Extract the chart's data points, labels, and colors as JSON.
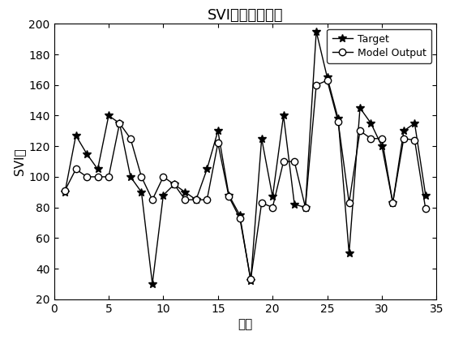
{
  "title": "SVI输出曲线对比",
  "xlabel": "样本",
  "ylabel": "SVI値",
  "xlim": [
    0,
    35
  ],
  "ylim": [
    20,
    200
  ],
  "xticks": [
    0,
    5,
    10,
    15,
    20,
    25,
    30,
    35
  ],
  "yticks": [
    20,
    40,
    60,
    80,
    100,
    120,
    140,
    160,
    180,
    200
  ],
  "target_x": [
    1,
    2,
    3,
    4,
    5,
    6,
    7,
    8,
    9,
    10,
    11,
    12,
    13,
    14,
    15,
    16,
    17,
    18,
    19,
    20,
    21,
    22,
    23,
    24,
    25,
    26,
    27,
    28,
    29,
    30,
    31,
    32,
    33,
    34
  ],
  "target_y": [
    90,
    127,
    115,
    105,
    140,
    135,
    100,
    90,
    30,
    88,
    95,
    90,
    85,
    105,
    130,
    88,
    75,
    32,
    125,
    87,
    140,
    82,
    80,
    195,
    165,
    138,
    50,
    145,
    135,
    120,
    83,
    130,
    135,
    88
  ],
  "model_x": [
    1,
    2,
    3,
    4,
    5,
    6,
    7,
    8,
    9,
    10,
    11,
    12,
    13,
    14,
    15,
    16,
    17,
    18,
    19,
    20,
    21,
    22,
    23,
    24,
    25,
    26,
    27,
    28,
    29,
    30,
    31,
    32,
    33,
    34
  ],
  "model_y": [
    91,
    105,
    100,
    100,
    100,
    135,
    125,
    100,
    85,
    100,
    95,
    85,
    85,
    85,
    122,
    87,
    73,
    33,
    83,
    80,
    110,
    110,
    80,
    160,
    163,
    136,
    83,
    130,
    125,
    125,
    83,
    125,
    124,
    79
  ],
  "line_color": "#000000",
  "bg_color": "#ffffff",
  "legend_labels": [
    "Target",
    "Model Output"
  ],
  "target_marker": "*",
  "model_marker": "o",
  "markersize_star": 7,
  "markersize_circle": 6,
  "linewidth": 1.0,
  "title_fontsize": 13,
  "label_fontsize": 11,
  "tick_fontsize": 10
}
